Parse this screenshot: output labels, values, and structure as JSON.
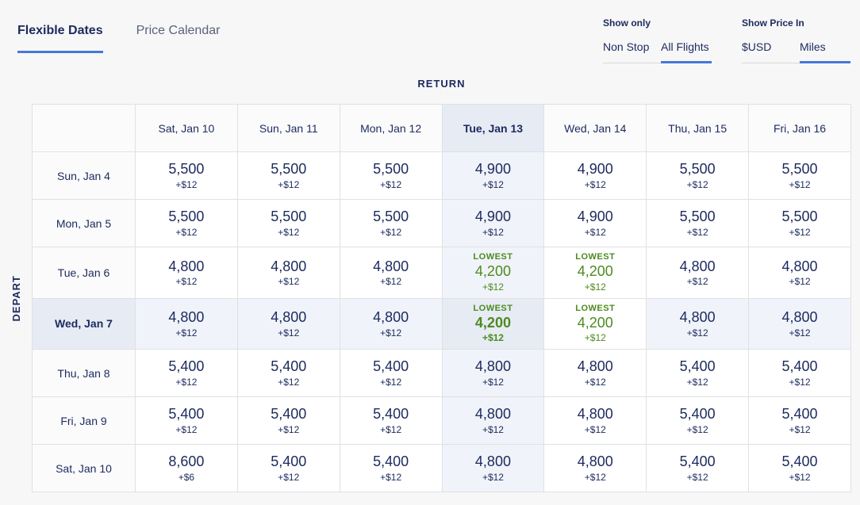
{
  "tabs": [
    {
      "label": "Flexible Dates",
      "active": true
    },
    {
      "label": "Price Calendar",
      "active": false
    }
  ],
  "filters": {
    "show_only": {
      "label": "Show only",
      "options": [
        {
          "label": "Non Stop",
          "active": false
        },
        {
          "label": "All Flights",
          "active": true
        }
      ]
    },
    "show_price_in": {
      "label": "Show Price In",
      "options": [
        {
          "label": "$USD",
          "active": false
        },
        {
          "label": "Miles",
          "active": true
        }
      ]
    }
  },
  "matrix": {
    "return_label": "RETURN",
    "depart_label": "DEPART",
    "lowest_label": "LOWEST",
    "columns": [
      {
        "label": "Sat, Jan 10",
        "selected": false
      },
      {
        "label": "Sun, Jan 11",
        "selected": false
      },
      {
        "label": "Mon, Jan 12",
        "selected": false
      },
      {
        "label": "Tue, Jan 13",
        "selected": true
      },
      {
        "label": "Wed, Jan 14",
        "selected": false
      },
      {
        "label": "Thu, Jan 15",
        "selected": false
      },
      {
        "label": "Fri, Jan 16",
        "selected": false
      }
    ],
    "rows": [
      {
        "label": "Sun, Jan 4",
        "selected": false,
        "cells": [
          {
            "price": "5,500",
            "fee": "+$12",
            "lowest": false,
            "tint": "none"
          },
          {
            "price": "5,500",
            "fee": "+$12",
            "lowest": false,
            "tint": "none"
          },
          {
            "price": "5,500",
            "fee": "+$12",
            "lowest": false,
            "tint": "none"
          },
          {
            "price": "4,900",
            "fee": "+$12",
            "lowest": false,
            "tint": "light"
          },
          {
            "price": "4,900",
            "fee": "+$12",
            "lowest": false,
            "tint": "none"
          },
          {
            "price": "5,500",
            "fee": "+$12",
            "lowest": false,
            "tint": "none"
          },
          {
            "price": "5,500",
            "fee": "+$12",
            "lowest": false,
            "tint": "none"
          }
        ]
      },
      {
        "label": "Mon, Jan 5",
        "selected": false,
        "cells": [
          {
            "price": "5,500",
            "fee": "+$12",
            "lowest": false,
            "tint": "none"
          },
          {
            "price": "5,500",
            "fee": "+$12",
            "lowest": false,
            "tint": "none"
          },
          {
            "price": "5,500",
            "fee": "+$12",
            "lowest": false,
            "tint": "none"
          },
          {
            "price": "4,900",
            "fee": "+$12",
            "lowest": false,
            "tint": "light"
          },
          {
            "price": "4,900",
            "fee": "+$12",
            "lowest": false,
            "tint": "none"
          },
          {
            "price": "5,500",
            "fee": "+$12",
            "lowest": false,
            "tint": "none"
          },
          {
            "price": "5,500",
            "fee": "+$12",
            "lowest": false,
            "tint": "none"
          }
        ]
      },
      {
        "label": "Tue, Jan 6",
        "selected": false,
        "cells": [
          {
            "price": "4,800",
            "fee": "+$12",
            "lowest": false,
            "tint": "none"
          },
          {
            "price": "4,800",
            "fee": "+$12",
            "lowest": false,
            "tint": "none"
          },
          {
            "price": "4,800",
            "fee": "+$12",
            "lowest": false,
            "tint": "none"
          },
          {
            "price": "4,200",
            "fee": "+$12",
            "lowest": true,
            "tint": "light"
          },
          {
            "price": "4,200",
            "fee": "+$12",
            "lowest": true,
            "tint": "none"
          },
          {
            "price": "4,800",
            "fee": "+$12",
            "lowest": false,
            "tint": "none"
          },
          {
            "price": "4,800",
            "fee": "+$12",
            "lowest": false,
            "tint": "none"
          }
        ]
      },
      {
        "label": "Wed, Jan 7",
        "selected": true,
        "cells": [
          {
            "price": "4,800",
            "fee": "+$12",
            "lowest": false,
            "tint": "light"
          },
          {
            "price": "4,800",
            "fee": "+$12",
            "lowest": false,
            "tint": "light"
          },
          {
            "price": "4,800",
            "fee": "+$12",
            "lowest": false,
            "tint": "light"
          },
          {
            "price": "4,200",
            "fee": "+$12",
            "lowest": true,
            "tint": "strong"
          },
          {
            "price": "4,200",
            "fee": "+$12",
            "lowest": true,
            "tint": "none"
          },
          {
            "price": "4,800",
            "fee": "+$12",
            "lowest": false,
            "tint": "light"
          },
          {
            "price": "4,800",
            "fee": "+$12",
            "lowest": false,
            "tint": "light"
          }
        ]
      },
      {
        "label": "Thu, Jan 8",
        "selected": false,
        "cells": [
          {
            "price": "5,400",
            "fee": "+$12",
            "lowest": false,
            "tint": "none"
          },
          {
            "price": "5,400",
            "fee": "+$12",
            "lowest": false,
            "tint": "none"
          },
          {
            "price": "5,400",
            "fee": "+$12",
            "lowest": false,
            "tint": "none"
          },
          {
            "price": "4,800",
            "fee": "+$12",
            "lowest": false,
            "tint": "light"
          },
          {
            "price": "4,800",
            "fee": "+$12",
            "lowest": false,
            "tint": "none"
          },
          {
            "price": "5,400",
            "fee": "+$12",
            "lowest": false,
            "tint": "none"
          },
          {
            "price": "5,400",
            "fee": "+$12",
            "lowest": false,
            "tint": "none"
          }
        ]
      },
      {
        "label": "Fri, Jan 9",
        "selected": false,
        "cells": [
          {
            "price": "5,400",
            "fee": "+$12",
            "lowest": false,
            "tint": "none"
          },
          {
            "price": "5,400",
            "fee": "+$12",
            "lowest": false,
            "tint": "none"
          },
          {
            "price": "5,400",
            "fee": "+$12",
            "lowest": false,
            "tint": "none"
          },
          {
            "price": "4,800",
            "fee": "+$12",
            "lowest": false,
            "tint": "light"
          },
          {
            "price": "4,800",
            "fee": "+$12",
            "lowest": false,
            "tint": "none"
          },
          {
            "price": "5,400",
            "fee": "+$12",
            "lowest": false,
            "tint": "none"
          },
          {
            "price": "5,400",
            "fee": "+$12",
            "lowest": false,
            "tint": "none"
          }
        ]
      },
      {
        "label": "Sat, Jan 10",
        "selected": false,
        "cells": [
          {
            "price": "8,600",
            "fee": "+$6",
            "lowest": false,
            "tint": "none"
          },
          {
            "price": "5,400",
            "fee": "+$12",
            "lowest": false,
            "tint": "none"
          },
          {
            "price": "5,400",
            "fee": "+$12",
            "lowest": false,
            "tint": "none"
          },
          {
            "price": "4,800",
            "fee": "+$12",
            "lowest": false,
            "tint": "light"
          },
          {
            "price": "4,800",
            "fee": "+$12",
            "lowest": false,
            "tint": "none"
          },
          {
            "price": "5,400",
            "fee": "+$12",
            "lowest": false,
            "tint": "none"
          },
          {
            "price": "5,400",
            "fee": "+$12",
            "lowest": false,
            "tint": "none"
          }
        ]
      }
    ]
  },
  "colors": {
    "navy_text": "#1c2a5e",
    "accent_blue": "#4678d8",
    "lowest_green": "#4d8a1f",
    "selected_tint_light": "#f0f3f9",
    "selected_tint_strong": "#e6ebf4",
    "page_background": "#f7f7f8"
  }
}
